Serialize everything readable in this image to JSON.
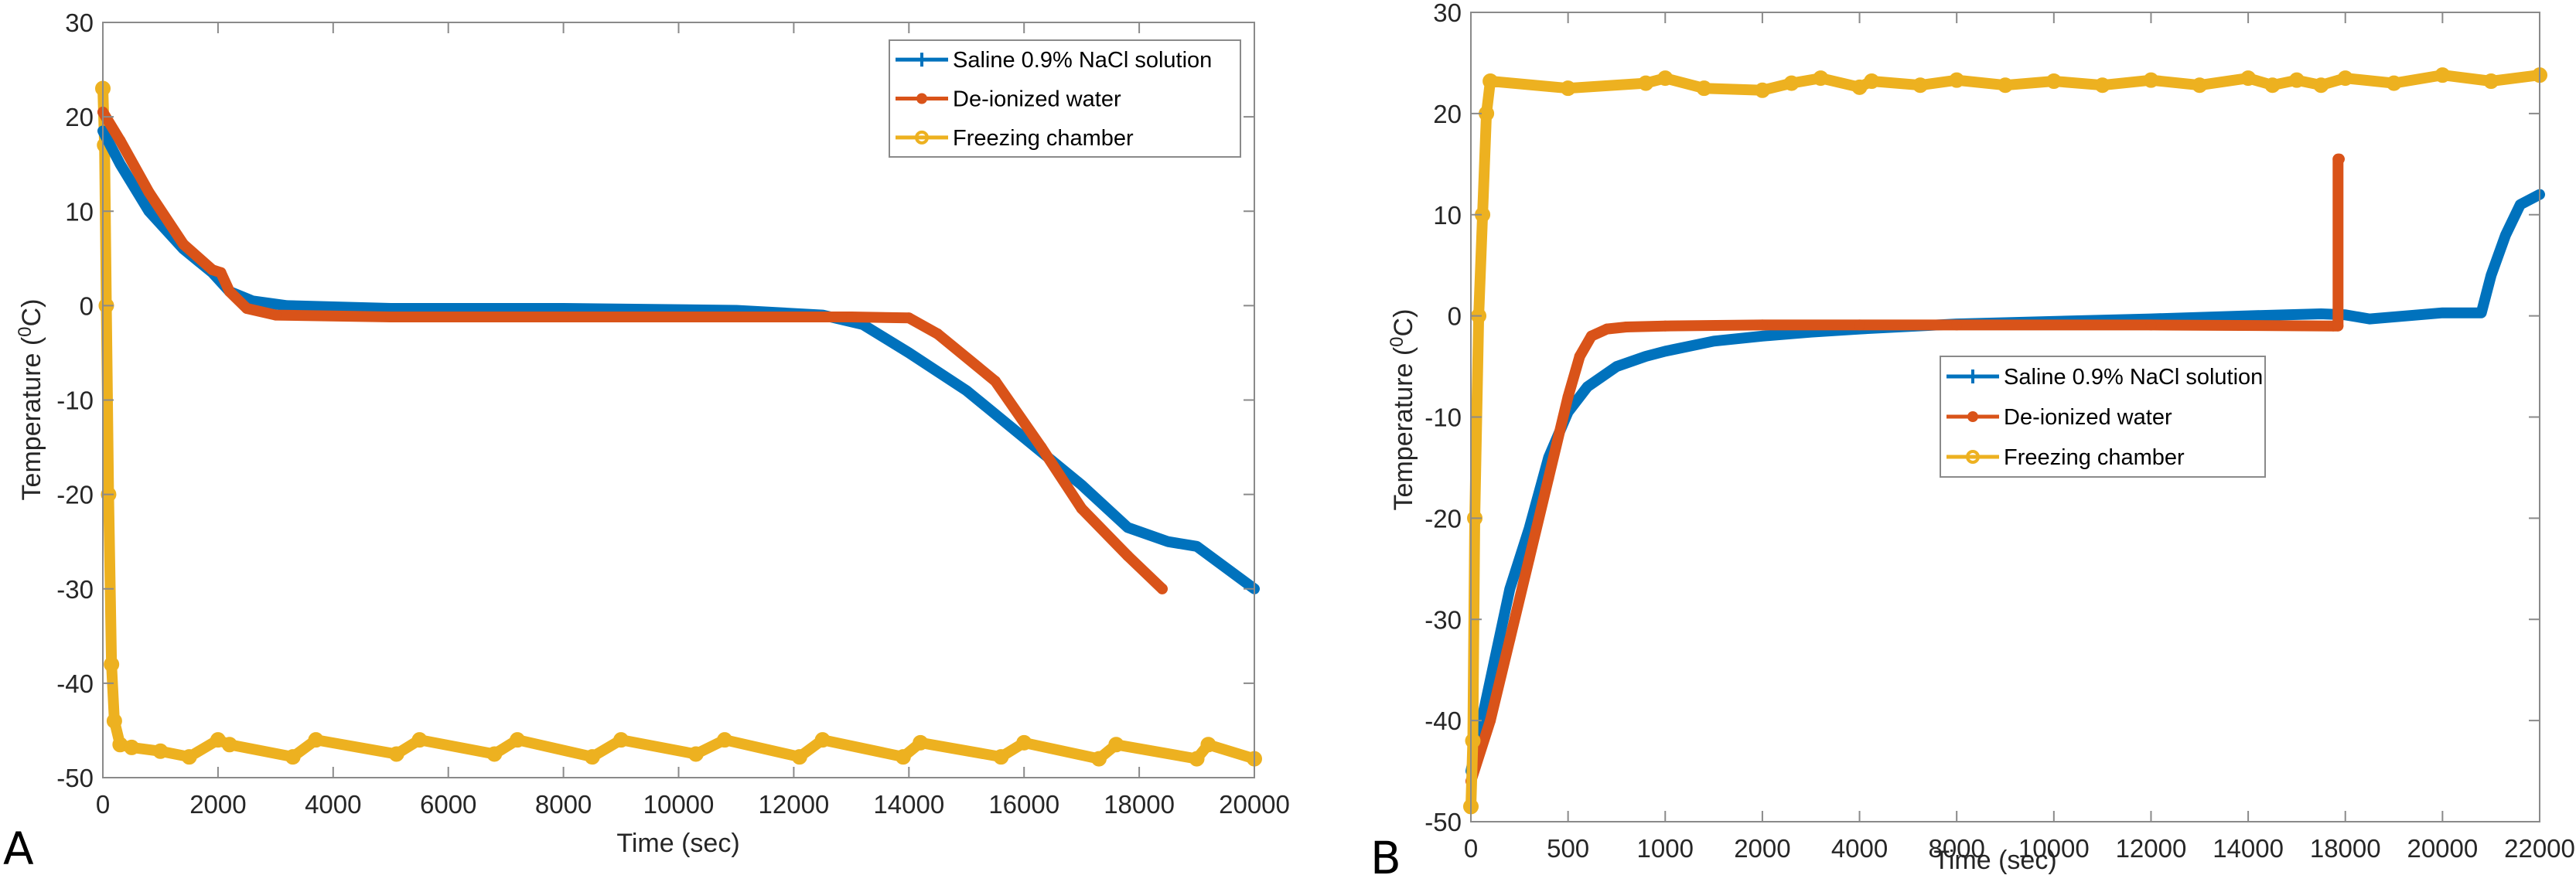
{
  "chart_data": [
    {
      "panel": "A",
      "type": "line",
      "title": "",
      "xlabel": "Time (sec)",
      "ylabel": "Temperature (0C)",
      "ylabel_main": "Temperature (",
      "ylabel_sup": "0",
      "ylabel_end": "C)",
      "xlim": [
        0,
        20000
      ],
      "ylim": [
        -50,
        30
      ],
      "xticks": [
        0,
        2000,
        4000,
        6000,
        8000,
        10000,
        12000,
        14000,
        16000,
        18000,
        20000
      ],
      "yticks": [
        -50,
        -40,
        -30,
        -20,
        -10,
        0,
        10,
        20,
        30
      ],
      "grid": false,
      "legend_position": "top-right",
      "series": [
        {
          "name": "Saline 0.9% NaCl solution",
          "color": "#0072BD",
          "marker": "plus",
          "x": [
            0,
            300,
            800,
            1400,
            1900,
            2200,
            2600,
            3200,
            5000,
            8000,
            11000,
            12500,
            13200,
            14000,
            15000,
            16000,
            17000,
            17800,
            18500,
            19000,
            20000
          ],
          "y": [
            18.5,
            15,
            10,
            6,
            3.5,
            1.5,
            0.5,
            0,
            -0.3,
            -0.3,
            -0.5,
            -1,
            -2,
            -5,
            -9,
            -14,
            -19,
            -23.5,
            -25,
            -25.5,
            -30
          ]
        },
        {
          "name": "De-ionized water",
          "color": "#D95319",
          "marker": "dot",
          "x": [
            0,
            300,
            800,
            1400,
            1900,
            2050,
            2200,
            2500,
            3000,
            5000,
            8000,
            11000,
            13000,
            14000,
            14500,
            15500,
            16300,
            17000,
            17800,
            18400
          ],
          "y": [
            20.5,
            17.5,
            12,
            6.5,
            3.8,
            3.5,
            1.5,
            -0.3,
            -1,
            -1.2,
            -1.2,
            -1.2,
            -1.2,
            -1.3,
            -3,
            -8,
            -15,
            -21.5,
            -26.5,
            -30
          ]
        },
        {
          "name": "Freezing chamber",
          "color": "#EDB120",
          "marker": "circle",
          "x": [
            0,
            30,
            60,
            100,
            150,
            200,
            300,
            500,
            1000,
            1500,
            2000,
            2200,
            3300,
            3700,
            5100,
            5500,
            6800,
            7200,
            8500,
            9000,
            10300,
            10800,
            12100,
            12500,
            13900,
            14200,
            15600,
            16000,
            17300,
            17600,
            19000,
            19200,
            20000
          ],
          "y": [
            23,
            17,
            0,
            -20,
            -38,
            -44,
            -46.5,
            -46.8,
            -47.2,
            -47.8,
            -46,
            -46.5,
            -47.8,
            -46,
            -47.5,
            -46,
            -47.5,
            -46,
            -47.8,
            -46,
            -47.5,
            -46,
            -47.8,
            -46,
            -47.8,
            -46.3,
            -47.8,
            -46.3,
            -48,
            -46.5,
            -48,
            -46.5,
            -48
          ]
        }
      ]
    },
    {
      "panel": "B",
      "type": "line",
      "title": "",
      "xlabel": "Time (sec)",
      "ylabel": "Temperature (0C)",
      "ylabel_main": "Temperature (",
      "ylabel_sup": "0",
      "ylabel_end": "C)",
      "xlim": [
        0,
        22000
      ],
      "ylim": [
        -50,
        30
      ],
      "xticks": [
        0,
        500,
        1000,
        2000,
        4000,
        8000,
        10000,
        12000,
        14000,
        18000,
        20000,
        22000
      ],
      "xtick_labels": [
        "0",
        "500",
        "1000",
        "2000",
        "4000",
        "8000",
        "10000",
        "12000",
        "14000",
        "18000",
        "20000",
        "22000"
      ],
      "yticks": [
        -50,
        -40,
        -30,
        -20,
        -10,
        0,
        10,
        20,
        30
      ],
      "grid": false,
      "legend_position": "center",
      "series": [
        {
          "name": "Saline 0.9% NaCl solution",
          "color": "#0072BD",
          "marker": "plus",
          "x": [
            0,
            100,
            200,
            300,
            400,
            500,
            600,
            750,
            900,
            1000,
            1500,
            2000,
            3000,
            4000,
            8000,
            12000,
            14000,
            17000,
            18000,
            18500,
            20000,
            20800,
            21000,
            21300,
            21600,
            22000
          ],
          "y": [
            -45,
            -36,
            -27,
            -21,
            -14,
            -9.5,
            -7,
            -5,
            -4,
            -3.5,
            -2.5,
            -2,
            -1.6,
            -1.3,
            -0.8,
            -0.3,
            0,
            0.2,
            0.1,
            -0.3,
            0.3,
            0.3,
            4,
            8,
            11,
            12
          ]
        },
        {
          "name": "De-ionized water",
          "color": "#D95319",
          "marker": "dot",
          "x": [
            0,
            100,
            200,
            300,
            400,
            500,
            560,
            620,
            700,
            800,
            1000,
            2000,
            4000,
            8000,
            12000,
            17500,
            17700,
            17700,
            17750
          ],
          "y": [
            -46,
            -40,
            -32,
            -24,
            -16,
            -8,
            -4,
            -2,
            -1.3,
            -1.1,
            -1,
            -0.9,
            -0.9,
            -0.9,
            -0.9,
            -1,
            -1,
            15.5,
            15.5
          ]
        },
        {
          "name": "Freezing chamber",
          "color": "#EDB120",
          "marker": "circle",
          "x": [
            0,
            10,
            20,
            40,
            60,
            80,
            100,
            500,
            900,
            1000,
            1400,
            2000,
            2600,
            3200,
            4000,
            4500,
            6500,
            8000,
            9000,
            10000,
            11000,
            12000,
            13000,
            14000,
            15000,
            16000,
            17000,
            18000,
            19000,
            20000,
            21000,
            22000
          ],
          "y": [
            -48.5,
            -42,
            -20,
            0,
            10,
            20,
            23.2,
            22.5,
            23,
            23.5,
            22.5,
            22.3,
            23,
            23.5,
            22.6,
            23.2,
            22.8,
            23.3,
            22.8,
            23.2,
            22.8,
            23.3,
            22.8,
            23.5,
            22.8,
            23.3,
            22.8,
            23.5,
            23.0,
            23.8,
            23.2,
            23.8
          ]
        }
      ]
    }
  ],
  "panel_labels": [
    "A",
    "B"
  ]
}
